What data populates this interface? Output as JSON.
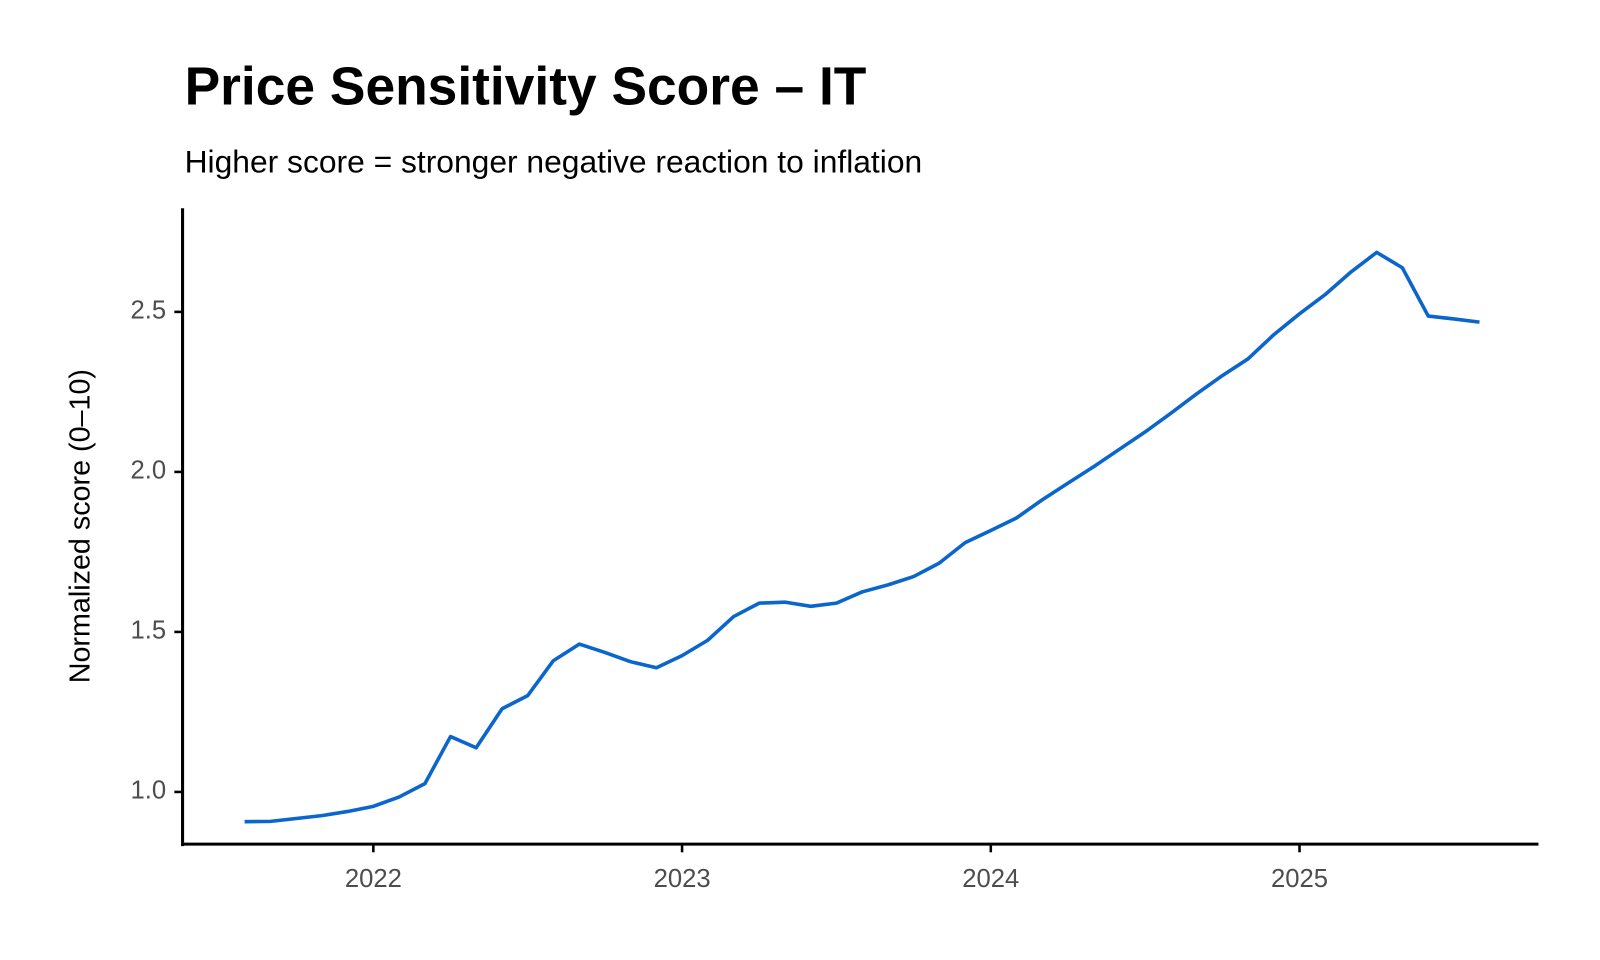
{
  "chart_data": {
    "type": "line",
    "title": "Price Sensitivity Score – IT",
    "subtitle": "Higher score = stronger negative reaction to inflation",
    "y_label": "Normalized score (0–10)",
    "x": [
      2021.583,
      2021.667,
      2021.75,
      2021.833,
      2021.917,
      2022.0,
      2022.083,
      2022.167,
      2022.25,
      2022.333,
      2022.417,
      2022.5,
      2022.583,
      2022.667,
      2022.75,
      2022.833,
      2022.917,
      2023.0,
      2023.083,
      2023.167,
      2023.25,
      2023.333,
      2023.417,
      2023.5,
      2023.583,
      2023.667,
      2023.75,
      2023.833,
      2023.917,
      2024.0,
      2024.083,
      2024.167,
      2024.25,
      2024.333,
      2024.417,
      2024.5,
      2024.583,
      2024.667,
      2024.75,
      2024.833,
      2024.917,
      2025.0,
      2025.083,
      2025.167,
      2025.25,
      2025.333,
      2025.417,
      2025.5,
      2025.583
    ],
    "series": [
      {
        "name": "IT",
        "color": "#0a66cc",
        "values": [
          0.907,
          0.908,
          0.917,
          0.926,
          0.939,
          0.955,
          0.984,
          1.026,
          1.173,
          1.138,
          1.26,
          1.301,
          1.41,
          1.462,
          1.436,
          1.407,
          1.388,
          1.426,
          1.474,
          1.548,
          1.59,
          1.593,
          1.58,
          1.59,
          1.625,
          1.647,
          1.673,
          1.715,
          1.779,
          1.817,
          1.856,
          1.913,
          1.965,
          2.016,
          2.071,
          2.125,
          2.183,
          2.244,
          2.301,
          2.353,
          2.429,
          2.494,
          2.554,
          2.625,
          2.686,
          2.638,
          2.487,
          2.478,
          2.468
        ]
      }
    ],
    "xlim": [
      2021.382,
      2025.774
    ],
    "xticks": [
      2022,
      2023,
      2024,
      2025
    ],
    "ylim": [
      0.837,
      2.824
    ],
    "yticks": [
      {
        "value": 1,
        "label": "1.0"
      },
      1.5,
      {
        "value": 2,
        "label": "2.0"
      },
      2.5
    ],
    "grid": false
  }
}
